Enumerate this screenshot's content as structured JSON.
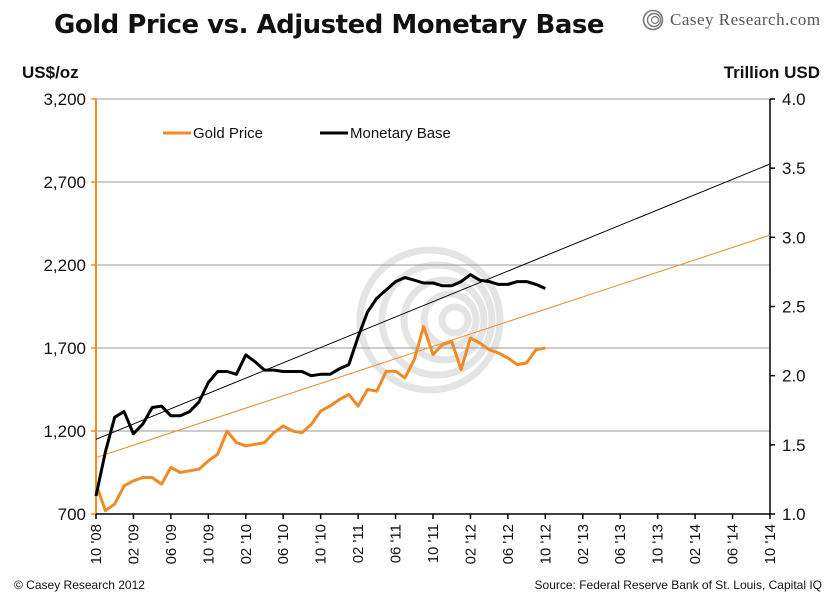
{
  "header": {
    "title": "Gold Price vs. Adjusted Monetary Base",
    "logo_text": "Casey Research.com"
  },
  "footer": {
    "copyright": "© Casey Research 2012",
    "source": "Source: Federal Reserve Bank of St. Louis, Capital IQ"
  },
  "colors": {
    "gold": "#f08a24",
    "base": "#000000",
    "grid": "#999999",
    "axis_left": "#f08a24"
  },
  "chart_data": {
    "type": "line",
    "title": "Gold Price vs. Adjusted Monetary Base",
    "y_left_label": "US$/oz",
    "y_right_label": "Trillion USD",
    "y_left_ticks": [
      "3,200",
      "2,700",
      "2,200",
      "1,700",
      "1,200",
      "700"
    ],
    "y_left_values": [
      3200,
      2700,
      2200,
      1700,
      1200,
      700
    ],
    "y_right_ticks": [
      "4.0",
      "3.5",
      "3.0",
      "2.5",
      "2.0",
      "1.5",
      "1.0"
    ],
    "y_right_values": [
      4.0,
      3.5,
      3.0,
      2.5,
      2.0,
      1.5,
      1.0
    ],
    "ylim_left": [
      700,
      3200
    ],
    "ylim_right": [
      1.0,
      4.0
    ],
    "x_ticks": [
      "10 '08",
      "02 '09",
      "06 '09",
      "10 '09",
      "02 '10",
      "06 '10",
      "10 '10",
      "02 '11",
      "06 '11",
      "10 '11",
      "02 '12",
      "06 '12",
      "10 '12",
      "02 '13",
      "06 '13",
      "10 '13",
      "02 '14",
      "06 '14",
      "10 '14"
    ],
    "xlim_months": [
      0,
      72
    ],
    "grid": "horizontal",
    "legend_position": "top-left",
    "series": [
      {
        "name": "Gold Price",
        "axis": "left",
        "x_months": [
          0,
          1,
          2,
          3,
          4,
          5,
          6,
          7,
          8,
          9,
          10,
          11,
          12,
          13,
          14,
          15,
          16,
          17,
          18,
          19,
          20,
          21,
          22,
          23,
          24,
          25,
          26,
          27,
          28,
          29,
          30,
          31,
          32,
          33,
          34,
          35,
          36,
          37,
          38,
          39,
          40,
          41,
          42,
          43,
          44,
          45,
          46,
          47,
          48
        ],
        "values": [
          880,
          720,
          760,
          870,
          900,
          920,
          920,
          880,
          980,
          950,
          960,
          970,
          1020,
          1060,
          1200,
          1130,
          1110,
          1120,
          1130,
          1190,
          1230,
          1200,
          1190,
          1240,
          1320,
          1350,
          1390,
          1420,
          1350,
          1450,
          1440,
          1560,
          1560,
          1520,
          1630,
          1830,
          1660,
          1720,
          1740,
          1570,
          1760,
          1730,
          1690,
          1670,
          1640,
          1600,
          1610,
          1690,
          1700
        ]
      },
      {
        "name": "Monetary Base",
        "axis": "right",
        "x_months": [
          0,
          1,
          2,
          3,
          4,
          5,
          6,
          7,
          8,
          9,
          10,
          11,
          12,
          13,
          14,
          15,
          16,
          17,
          18,
          19,
          20,
          21,
          22,
          23,
          24,
          25,
          26,
          27,
          28,
          29,
          30,
          31,
          32,
          33,
          34,
          35,
          36,
          37,
          38,
          39,
          40,
          41,
          42,
          43,
          44,
          45,
          46,
          47,
          48
        ],
        "values": [
          1.13,
          1.45,
          1.7,
          1.74,
          1.58,
          1.65,
          1.77,
          1.78,
          1.71,
          1.71,
          1.74,
          1.81,
          1.95,
          2.03,
          2.03,
          2.01,
          2.15,
          2.1,
          2.04,
          2.04,
          2.03,
          2.03,
          2.03,
          2.0,
          2.01,
          2.01,
          2.05,
          2.08,
          2.28,
          2.46,
          2.56,
          2.62,
          2.68,
          2.71,
          2.69,
          2.67,
          2.67,
          2.65,
          2.65,
          2.68,
          2.73,
          2.69,
          2.68,
          2.66,
          2.66,
          2.68,
          2.68,
          2.66,
          2.63
        ]
      }
    ],
    "trendlines": [
      {
        "series": "Gold Price",
        "axis": "left",
        "x_months": [
          0,
          72
        ],
        "values": [
          1040,
          2380
        ]
      },
      {
        "series": "Monetary Base",
        "axis": "right",
        "x_months": [
          0,
          72
        ],
        "values": [
          1.54,
          3.53
        ]
      }
    ]
  }
}
